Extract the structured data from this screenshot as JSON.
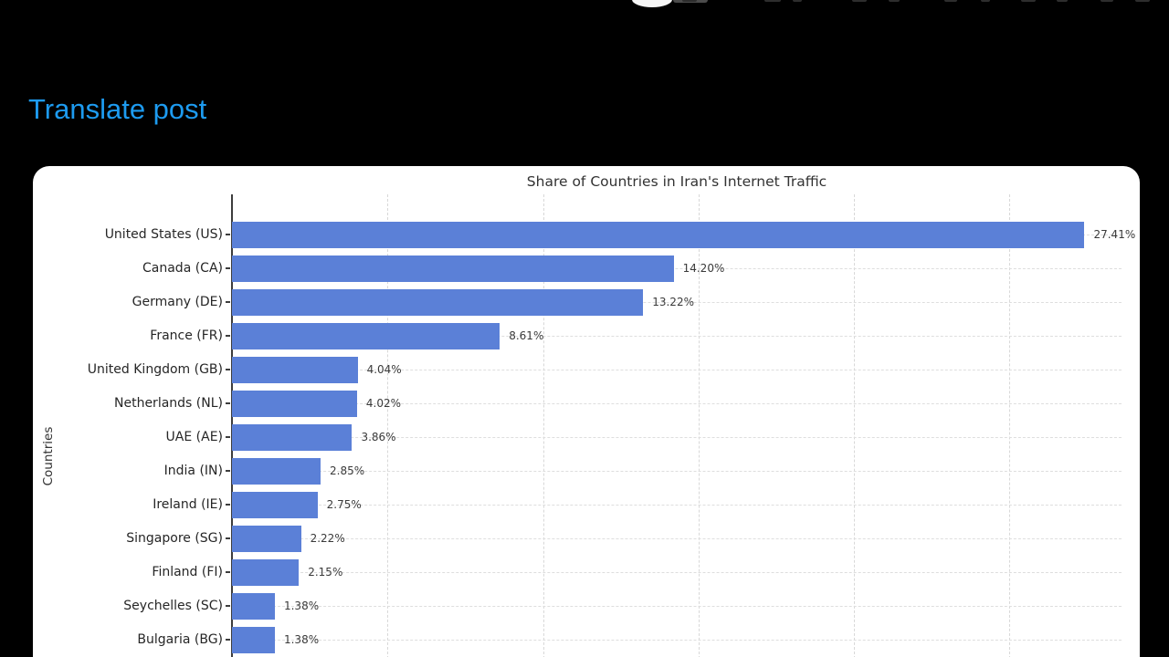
{
  "page": {
    "translate_link": "Translate post"
  },
  "colors": {
    "page_bg": "#000000",
    "link_blue": "#1d9bf0",
    "card_bg": "#ffffff",
    "bar_blue": "#5b80d7",
    "grid_gray": "#d8d8d8",
    "axis_dark": "#3d3d3d"
  },
  "chart_data": {
    "type": "bar",
    "orientation": "horizontal",
    "title": "Share of Countries in Iran's Internet Traffic",
    "xlabel": "",
    "ylabel": "Countries",
    "categories": [
      "United States (US)",
      "Canada (CA)",
      "Germany (DE)",
      "France (FR)",
      "United Kingdom (GB)",
      "Netherlands (NL)",
      "UAE (AE)",
      "India (IN)",
      "Ireland (IE)",
      "Singapore (SG)",
      "Finland (FI)",
      "Seychelles (SC)",
      "Bulgaria (BG)"
    ],
    "values": [
      27.41,
      14.2,
      13.22,
      8.61,
      4.04,
      4.02,
      3.86,
      2.85,
      2.75,
      2.22,
      2.15,
      1.38,
      1.38
    ],
    "value_labels": [
      "27.41%",
      "14.20%",
      "13.22%",
      "8.61%",
      "4.04%",
      "4.02%",
      "3.86%",
      "2.85%",
      "2.75%",
      "2.22%",
      "2.15%",
      "1.38%",
      "1.38%"
    ],
    "xlim": [
      0,
      28.6
    ],
    "gridline_values": [
      5,
      10,
      15,
      20,
      25
    ],
    "grid": true,
    "legend": false
  }
}
